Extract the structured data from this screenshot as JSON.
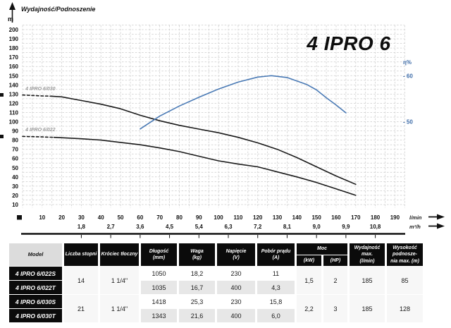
{
  "chart": {
    "title": "Wydajność/Podnoszenie",
    "y_unit": "m",
    "model_title": "4 IPRO 6",
    "x_axis_label_lmin": "l/min",
    "x_axis_label_m3h": "m³/h",
    "eta_label": "η%",
    "eta_ticks": [
      {
        "label": "- 60",
        "value": 60
      },
      {
        "label": "- 50",
        "value": 50
      }
    ],
    "y_ticks": [
      200,
      190,
      180,
      170,
      160,
      150,
      140,
      130,
      120,
      110,
      100,
      90,
      80,
      70,
      60,
      50,
      40,
      30,
      20,
      10
    ],
    "x_ticks_lmin": [
      10,
      20,
      30,
      40,
      50,
      60,
      70,
      80,
      90,
      100,
      110,
      120,
      130,
      140,
      150,
      160,
      170,
      180,
      190
    ],
    "x_ticks_m3h": [
      {
        "label": "1,8",
        "lmin": 30
      },
      {
        "label": "2,7",
        "lmin": 45
      },
      {
        "label": "3,6",
        "lmin": 60
      },
      {
        "label": "4,5",
        "lmin": 75
      },
      {
        "label": "5,4",
        "lmin": 90
      },
      {
        "label": "6,3",
        "lmin": 105
      },
      {
        "label": "7,2",
        "lmin": 120
      },
      {
        "label": "8,1",
        "lmin": 135
      },
      {
        "label": "9,0",
        "lmin": 150
      },
      {
        "label": "9,9",
        "lmin": 165
      },
      {
        "label": "10,8",
        "lmin": 180
      }
    ],
    "curve_labels": [
      {
        "text": "4 IPRO 6/030",
        "lmin": 1.5,
        "m": 134
      },
      {
        "text": "4 IPRO 6/022",
        "lmin": 1.5,
        "m": 89.5
      }
    ],
    "colors": {
      "curve_black": "#1a1a1a",
      "curve_blue": "#4a7ab5",
      "eta_text": "#3c6ba8",
      "grid": "#cbcbcb"
    }
  },
  "chart_data": {
    "type": "line",
    "title": "4 IPRO 6",
    "subtitle": "Wydajność/Podnoszenie",
    "xlabel": "l/min (secondary axis: m³/h)",
    "ylabel": "m (head); right axis: η%",
    "x_range_lmin": [
      0,
      195
    ],
    "y_range_m": [
      10,
      200
    ],
    "eta_ticks_pct": [
      50,
      60
    ],
    "grid": true,
    "series": [
      {
        "name": "4 IPRO 6/030",
        "axis": "head_m",
        "color": "#1a1a1a",
        "dashed_until_lmin": 15,
        "points": [
          [
            0,
            129
          ],
          [
            10,
            128
          ],
          [
            15,
            127.7
          ],
          [
            20,
            127
          ],
          [
            30,
            123
          ],
          [
            40,
            119
          ],
          [
            50,
            114
          ],
          [
            60,
            107
          ],
          [
            70,
            101
          ],
          [
            80,
            96
          ],
          [
            90,
            92
          ],
          [
            100,
            88
          ],
          [
            110,
            83
          ],
          [
            120,
            77
          ],
          [
            130,
            70
          ],
          [
            140,
            61
          ],
          [
            150,
            51
          ],
          [
            160,
            41
          ],
          [
            170,
            32
          ]
        ]
      },
      {
        "name": "4 IPRO 6/022",
        "axis": "head_m",
        "color": "#1a1a1a",
        "dashed_until_lmin": 16,
        "points": [
          [
            0,
            84
          ],
          [
            10,
            83.5
          ],
          [
            16,
            83
          ],
          [
            30,
            81.5
          ],
          [
            40,
            80
          ],
          [
            50,
            77.5
          ],
          [
            60,
            75
          ],
          [
            70,
            71.5
          ],
          [
            80,
            67.5
          ],
          [
            90,
            62.5
          ],
          [
            100,
            57.5
          ],
          [
            110,
            54
          ],
          [
            120,
            51
          ],
          [
            130,
            45.5
          ],
          [
            140,
            40
          ],
          [
            150,
            34
          ],
          [
            160,
            27
          ],
          [
            170,
            20
          ]
        ]
      },
      {
        "name": "η%",
        "axis": "eta_pct",
        "color": "#4a7ab5",
        "points": [
          [
            60,
            48.5
          ],
          [
            70,
            51.3
          ],
          [
            80,
            53.5
          ],
          [
            90,
            55.4
          ],
          [
            100,
            57.2
          ],
          [
            110,
            58.7
          ],
          [
            120,
            59.8
          ],
          [
            127,
            60.1
          ],
          [
            135,
            59.7
          ],
          [
            145,
            58.2
          ],
          [
            150,
            57
          ],
          [
            155,
            55.3
          ],
          [
            160,
            53.7
          ],
          [
            165,
            52
          ]
        ]
      }
    ]
  },
  "table": {
    "headers": {
      "model": "Model",
      "stages": "Liczba stopni",
      "outlet": "Króciec tłoczny",
      "length_l1": "Długość",
      "length_l2": "(mm)",
      "weight_l1": "Waga",
      "weight_l2": "(kg)",
      "voltage_l1": "Napięcie",
      "voltage_l2": "(V)",
      "current_l1": "Pobór prądu",
      "current_l2": "(A)",
      "power": "Moc",
      "power_kw": "(kW)",
      "power_hp": "(HP)",
      "qmax_l1": "Wydajność max.",
      "qmax_l2": "(l/min)",
      "hmax_l1": "Wysokość podnosze-",
      "hmax_l2": "nia max. (m)"
    },
    "rows": [
      {
        "model": "4 IPRO 6/022S",
        "length": "1050",
        "weight": "18,2",
        "voltage": "230",
        "current": "11"
      },
      {
        "model": "4 IPRO 6/022T",
        "length": "1035",
        "weight": "16,7",
        "voltage": "400",
        "current": "4,3"
      },
      {
        "model": "4 IPRO 6/030S",
        "length": "1418",
        "weight": "25,3",
        "voltage": "230",
        "current": "15,8"
      },
      {
        "model": "4 IPRO 6/030T",
        "length": "1343",
        "weight": "21,6",
        "voltage": "400",
        "current": "6,0"
      }
    ],
    "groups": [
      {
        "stages": "14",
        "outlet": "1 1/4\"",
        "kw": "1,5",
        "hp": "2",
        "qmax": "185",
        "hmax": "85"
      },
      {
        "stages": "21",
        "outlet": "1 1/4\"",
        "kw": "2,2",
        "hp": "3",
        "qmax": "185",
        "hmax": "128"
      }
    ]
  }
}
